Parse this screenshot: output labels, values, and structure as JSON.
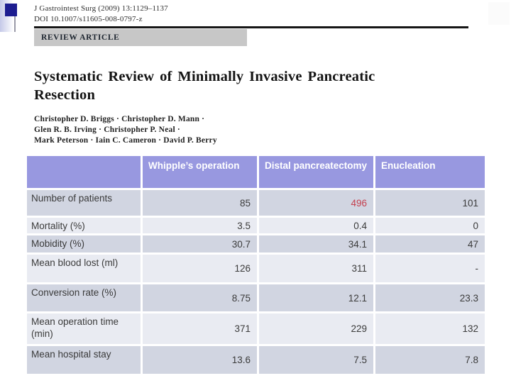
{
  "decoration": {
    "accent_square_color": "#1d1d90",
    "strip_color": "#c5c9e8"
  },
  "paper_header": {
    "journal_line1": "J Gastrointest Surg (2009) 13:1129–1137",
    "journal_line2": "DOI 10.1007/s11605-008-0797-z",
    "section_label": "REVIEW ARTICLE",
    "title": "Systematic Review of Minimally Invasive Pancreatic Resection",
    "authors_lines": [
      "Christopher D. Briggs · Christopher D. Mann ·",
      "Glen R. B. Irving · Christopher P. Neal ·",
      "Mark Peterson · Iain C. Cameron · David P. Berry"
    ]
  },
  "table": {
    "header_columns": [
      "",
      "Whipple’s operation",
      "Distal pancreatectomy",
      "Enucleation"
    ],
    "rows": [
      {
        "label": "Number of patients",
        "values": [
          "85",
          "496",
          "101"
        ],
        "highlight": [
          false,
          true,
          false
        ]
      },
      {
        "label": "Mortality (%)",
        "values": [
          "3.5",
          "0.4",
          "0"
        ],
        "highlight": [
          false,
          false,
          false
        ]
      },
      {
        "label": "Mobidity (%)",
        "values": [
          "30.7",
          "34.1",
          "47"
        ],
        "highlight": [
          false,
          false,
          false
        ]
      },
      {
        "label": "Mean blood lost (ml)",
        "values": [
          "126",
          "311",
          "-"
        ],
        "highlight": [
          false,
          false,
          false
        ]
      },
      {
        "label": "Conversion rate (%)",
        "values": [
          "8.75",
          "12.1",
          "23.3"
        ],
        "highlight": [
          false,
          false,
          false
        ]
      },
      {
        "label": "Mean operation time (min)",
        "values": [
          "371",
          "229",
          "132"
        ],
        "highlight": [
          false,
          false,
          false
        ]
      },
      {
        "label": "Mean hospital stay",
        "values": [
          "13.6",
          "7.5",
          "7.8"
        ],
        "highlight": [
          false,
          false,
          false
        ]
      }
    ],
    "colors": {
      "header_bg": "#9898e0",
      "header_text": "#ffffff",
      "row_dark": "#d1d5e1",
      "row_light": "#e9ebf2",
      "text": "#3b3b3b",
      "highlight_value": "#c4404e"
    }
  }
}
